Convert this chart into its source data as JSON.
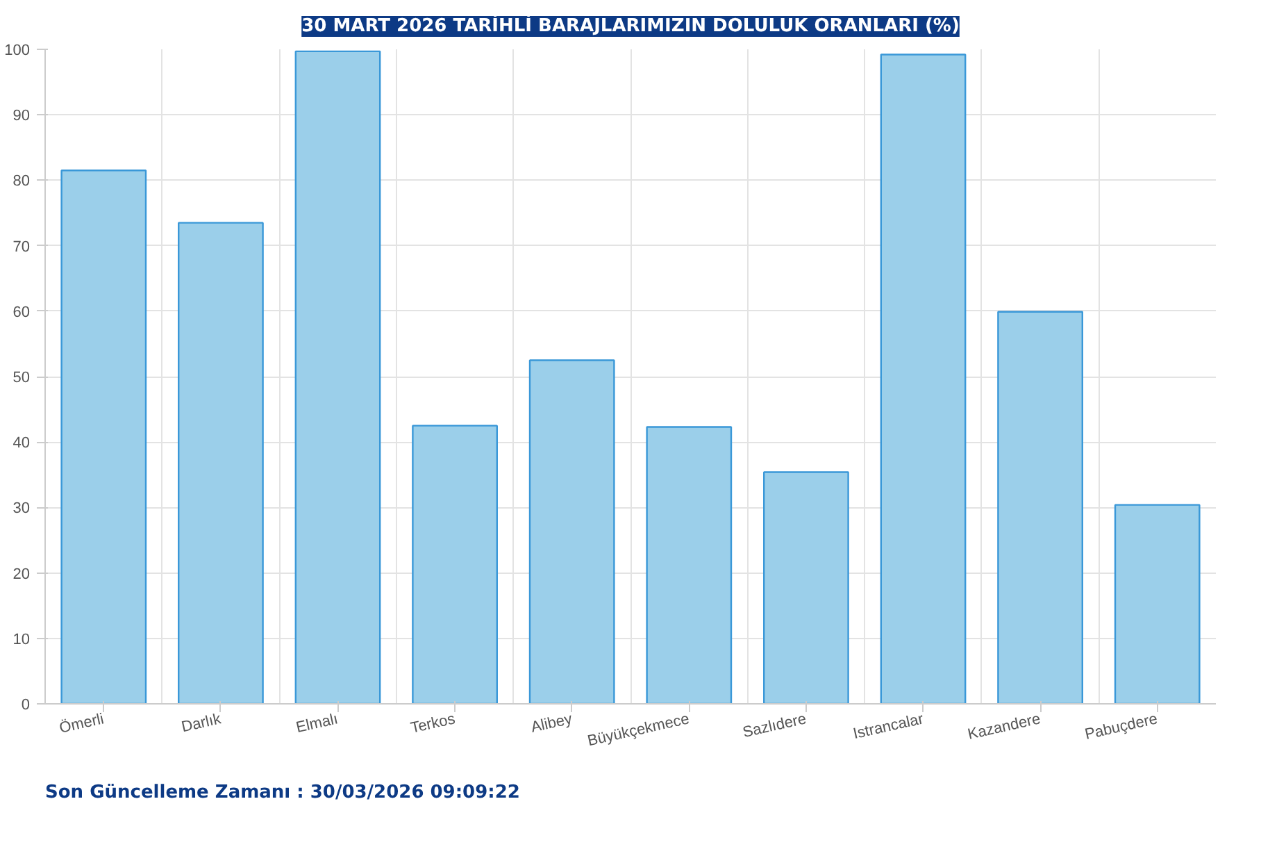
{
  "chart_data": {
    "type": "bar",
    "title": "30 MART 2026 TARİHLİ BARAJLARIMIZIN DOLULUK ORANLARI (%)",
    "categories": [
      "Ömerli",
      "Darlık",
      "Elmalı",
      "Terkos",
      "Alibey",
      "Büyükçekmece",
      "Sazlıdere",
      "Istrancalar",
      "Kazandere",
      "Pabuçdere"
    ],
    "values": [
      81.5,
      73.5,
      99.7,
      42.5,
      52.5,
      42.3,
      35.4,
      99.2,
      59.9,
      30.4
    ],
    "color": "#9bcfea",
    "ylim": [
      0,
      100
    ],
    "yticks": [
      0,
      10,
      20,
      30,
      40,
      50,
      60,
      70,
      80,
      90,
      100
    ],
    "grid": true,
    "annotations": [
      "Son Güncelleme Zamanı : 30/03/2026 09:09:22"
    ]
  }
}
